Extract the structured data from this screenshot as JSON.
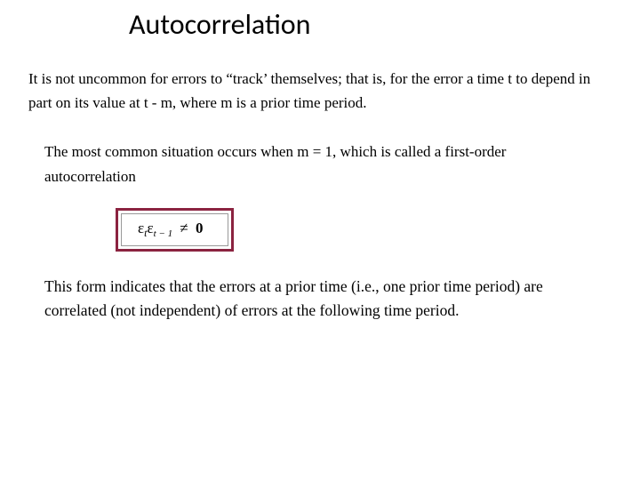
{
  "title": "Autocorrelation",
  "paragraph1": "It is not uncommon for errors to “track’ themselves; that is, for the error a time t to depend in part on its value at t - m, where m is a prior time period.",
  "paragraph2": "The most common situation occurs when m = 1, which is called a first-order autocorrelation",
  "formula": {
    "eps1": "ε",
    "sub1": "t",
    "eps2": "ε",
    "sub2": "t − 1",
    "neq": "≠",
    "zero": "0",
    "border_color": "#8b2340",
    "inner_border_color": "#999999"
  },
  "paragraph3": "This form indicates that the errors at a prior time (i.e., one prior time period) are correlated (not independent) of errors at the following time period.",
  "colors": {
    "background": "#ffffff",
    "text": "#000000"
  },
  "fonts": {
    "title_family": "Calibri",
    "title_size_pt": 24,
    "body_family": "Times New Roman",
    "body_size_pt": 13
  }
}
